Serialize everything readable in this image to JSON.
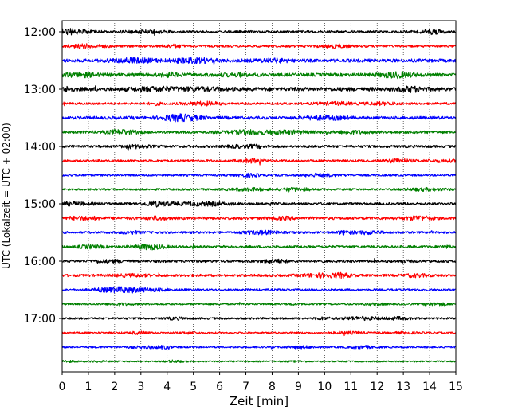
{
  "chart_data": {
    "type": "line",
    "title": "",
    "xlabel": "Zeit  [min]",
    "ylabel": "UTC (Lokalzeit = UTC + 02:00)",
    "xlim": [
      0,
      15
    ],
    "x_ticks": [
      0,
      1,
      2,
      3,
      4,
      5,
      6,
      7,
      8,
      9,
      10,
      11,
      12,
      13,
      14,
      15
    ],
    "x_tick_labels": [
      "0",
      "1",
      "2",
      "3",
      "4",
      "5",
      "6",
      "7",
      "8",
      "9",
      "10",
      "11",
      "12",
      "13",
      "14",
      "15"
    ],
    "y_axis_inverted": true,
    "y_tick_labels": [
      "12:00",
      "13:00",
      "14:00",
      "15:00",
      "16:00",
      "17:00"
    ],
    "grid": {
      "vertical": true,
      "style": "dotted"
    },
    "trace_interval_min": 15,
    "color_cycle": [
      "#000000",
      "#ff0000",
      "#0000ff",
      "#008000"
    ],
    "series": [
      {
        "start": "12:00",
        "color": "#000000",
        "amplitude": 1.0
      },
      {
        "start": "12:15",
        "color": "#ff0000",
        "amplitude": 0.9
      },
      {
        "start": "12:30",
        "color": "#0000ff",
        "amplitude": 1.3
      },
      {
        "start": "12:45",
        "color": "#008000",
        "amplitude": 1.3
      },
      {
        "start": "13:00",
        "color": "#000000",
        "amplitude": 1.5
      },
      {
        "start": "13:15",
        "color": "#ff0000",
        "amplitude": 0.9
      },
      {
        "start": "13:30",
        "color": "#0000ff",
        "amplitude": 1.2
      },
      {
        "start": "13:45",
        "color": "#008000",
        "amplitude": 1.1
      },
      {
        "start": "14:00",
        "color": "#000000",
        "amplitude": 1.0
      },
      {
        "start": "14:15",
        "color": "#ff0000",
        "amplitude": 0.9
      },
      {
        "start": "14:30",
        "color": "#0000ff",
        "amplitude": 0.8
      },
      {
        "start": "14:45",
        "color": "#008000",
        "amplitude": 0.8
      },
      {
        "start": "15:00",
        "color": "#000000",
        "amplitude": 1.0
      },
      {
        "start": "15:15",
        "color": "#ff0000",
        "amplitude": 1.1
      },
      {
        "start": "15:30",
        "color": "#0000ff",
        "amplitude": 0.9
      },
      {
        "start": "15:45",
        "color": "#008000",
        "amplitude": 1.0
      },
      {
        "start": "16:00",
        "color": "#000000",
        "amplitude": 1.0
      },
      {
        "start": "16:15",
        "color": "#ff0000",
        "amplitude": 1.0
      },
      {
        "start": "16:30",
        "color": "#0000ff",
        "amplitude": 0.8
      },
      {
        "start": "16:45",
        "color": "#008000",
        "amplitude": 0.7
      },
      {
        "start": "17:00",
        "color": "#000000",
        "amplitude": 0.8
      },
      {
        "start": "17:15",
        "color": "#ff0000",
        "amplitude": 0.7
      },
      {
        "start": "17:30",
        "color": "#0000ff",
        "amplitude": 0.7
      },
      {
        "start": "17:45",
        "color": "#008000",
        "amplitude": 0.6
      }
    ]
  }
}
